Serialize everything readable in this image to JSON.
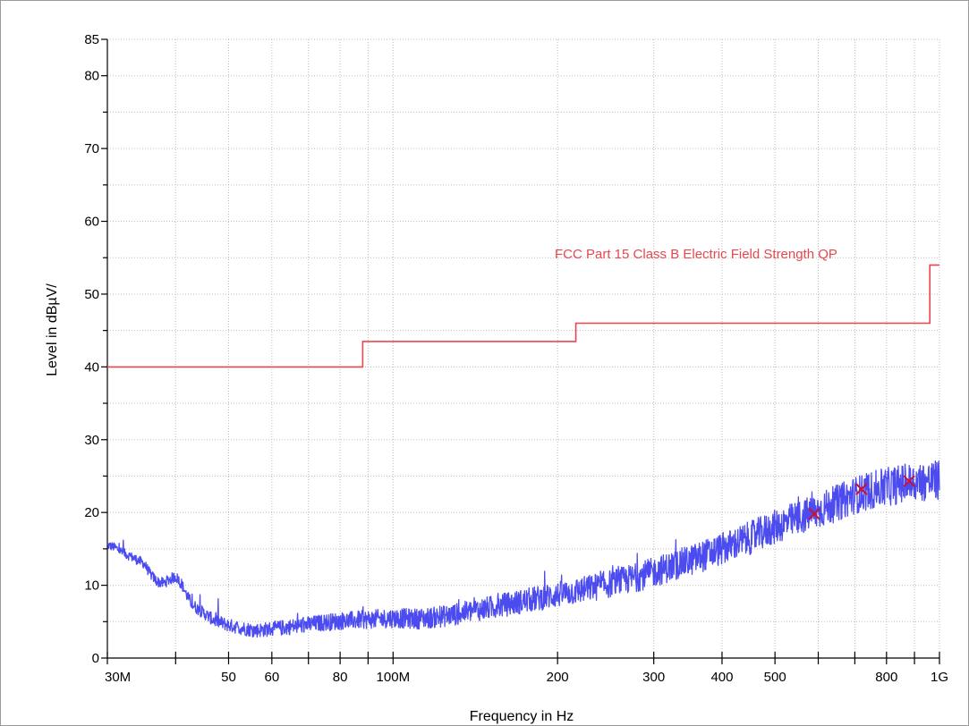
{
  "chart_data": {
    "type": "line",
    "title": "",
    "xlabel": "Frequency in Hz",
    "ylabel": "Level in dBµV/",
    "x_scale": "log",
    "xlim": [
      30000000,
      1000000000
    ],
    "ylim": [
      0,
      85
    ],
    "grid": true,
    "x_ticks": [
      {
        "value": 30000000,
        "label": "30M"
      },
      {
        "value": 50000000,
        "label": "50"
      },
      {
        "value": 60000000,
        "label": "60"
      },
      {
        "value": 80000000,
        "label": "80"
      },
      {
        "value": 100000000,
        "label": "100M"
      },
      {
        "value": 200000000,
        "label": "200"
      },
      {
        "value": 300000000,
        "label": "300"
      },
      {
        "value": 400000000,
        "label": "400"
      },
      {
        "value": 500000000,
        "label": "500"
      },
      {
        "value": 800000000,
        "label": "800"
      },
      {
        "value": 1000000000,
        "label": "1G"
      }
    ],
    "x_minor_ticks": [
      40000000,
      70000000,
      90000000,
      600000000,
      700000000,
      900000000
    ],
    "y_ticks": [
      {
        "value": 0,
        "label": "0"
      },
      {
        "value": 10,
        "label": "10"
      },
      {
        "value": 20,
        "label": "20"
      },
      {
        "value": 30,
        "label": "30"
      },
      {
        "value": 40,
        "label": "40"
      },
      {
        "value": 50,
        "label": "50"
      },
      {
        "value": 60,
        "label": "60"
      },
      {
        "value": 70,
        "label": "70"
      },
      {
        "value": 80,
        "label": "80"
      },
      {
        "value": 85,
        "label": "85"
      }
    ],
    "y_minor_ticks": [
      5,
      15,
      25,
      35,
      45,
      55,
      65,
      75
    ],
    "limit_line": {
      "name": "FCC Part 15 Class B Electric Field Strength QP",
      "color": "#e8474d",
      "points": [
        [
          30000000,
          40
        ],
        [
          88000000,
          40
        ],
        [
          88000000,
          43.5
        ],
        [
          216000000,
          43.5
        ],
        [
          216000000,
          46
        ],
        [
          960000000,
          46
        ],
        [
          960000000,
          54
        ],
        [
          1000000000,
          54
        ]
      ]
    },
    "series": [
      {
        "color": "#4b4bf0",
        "points": [
          [
            30000000,
            15.5
          ],
          [
            31000000,
            15.2
          ],
          [
            32000000,
            14.5
          ],
          [
            33000000,
            14
          ],
          [
            34000000,
            13.5
          ],
          [
            35000000,
            13
          ],
          [
            36000000,
            11.5
          ],
          [
            37000000,
            10.5
          ],
          [
            38000000,
            10.3
          ],
          [
            39000000,
            10.8
          ],
          [
            40000000,
            11.2
          ],
          [
            41000000,
            10.2
          ],
          [
            42000000,
            8.5
          ],
          [
            43000000,
            7.3
          ],
          [
            44000000,
            6.7
          ],
          [
            45000000,
            6.2
          ],
          [
            47000000,
            5.2
          ],
          [
            50000000,
            4.5
          ],
          [
            53000000,
            4.1
          ],
          [
            56000000,
            3.8
          ],
          [
            60000000,
            4
          ],
          [
            65000000,
            4.3
          ],
          [
            70000000,
            4.6
          ],
          [
            75000000,
            4.9
          ],
          [
            80000000,
            5.1
          ],
          [
            90000000,
            5.3
          ],
          [
            100000000,
            5.5
          ],
          [
            110000000,
            5.4
          ],
          [
            120000000,
            5.6
          ],
          [
            130000000,
            6
          ],
          [
            140000000,
            6.5
          ],
          [
            150000000,
            6.9
          ],
          [
            170000000,
            7.7
          ],
          [
            190000000,
            8.4
          ],
          [
            200000000,
            8.7
          ],
          [
            220000000,
            9.3
          ],
          [
            250000000,
            10.2
          ],
          [
            280000000,
            11.1
          ],
          [
            300000000,
            11.8
          ],
          [
            350000000,
            13.4
          ],
          [
            400000000,
            15
          ],
          [
            450000000,
            16.5
          ],
          [
            500000000,
            18
          ],
          [
            550000000,
            19.2
          ],
          [
            600000000,
            20.2
          ],
          [
            650000000,
            21.3
          ],
          [
            700000000,
            22.4
          ],
          [
            750000000,
            23
          ],
          [
            800000000,
            23.5
          ],
          [
            850000000,
            23.9
          ],
          [
            900000000,
            24.1
          ],
          [
            950000000,
            24.3
          ],
          [
            1000000000,
            24.4
          ]
        ]
      }
    ],
    "markers": [
      {
        "x": 590000000,
        "y": 19.8,
        "shape": "x",
        "color": "#cc1130"
      },
      {
        "x": 720000000,
        "y": 23.2,
        "shape": "x",
        "color": "#cc1130"
      },
      {
        "x": 880000000,
        "y": 24.3,
        "shape": "x",
        "color": "#cc1130"
      }
    ]
  }
}
